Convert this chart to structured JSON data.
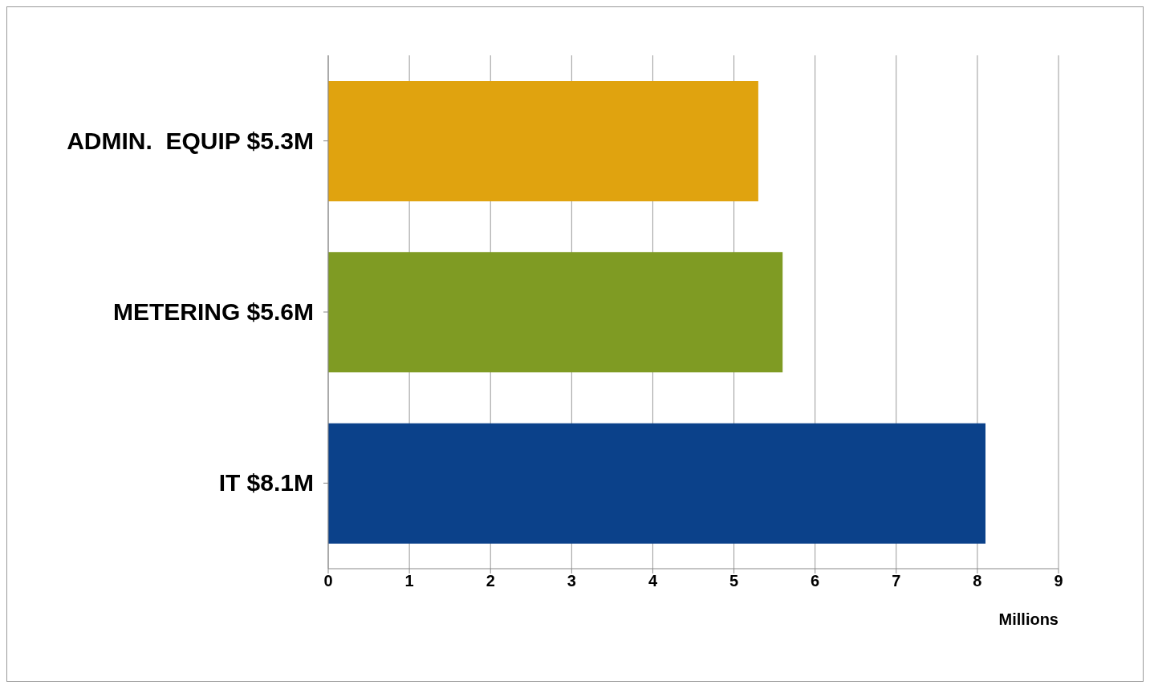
{
  "chart_data": {
    "type": "bar",
    "orientation": "horizontal",
    "categories": [
      "ADMIN.  EQUIP $5.3M",
      "METERING $5.6M",
      "IT $8.1M"
    ],
    "values": [
      5.3,
      5.6,
      8.1
    ],
    "colors": [
      "#e0a30f",
      "#7f9b23",
      "#0b418a"
    ],
    "xlabel": "Millions",
    "xlim": [
      0,
      9
    ],
    "xticks": [
      0,
      1,
      2,
      3,
      4,
      5,
      6,
      7,
      8,
      9
    ],
    "grid": "x"
  }
}
